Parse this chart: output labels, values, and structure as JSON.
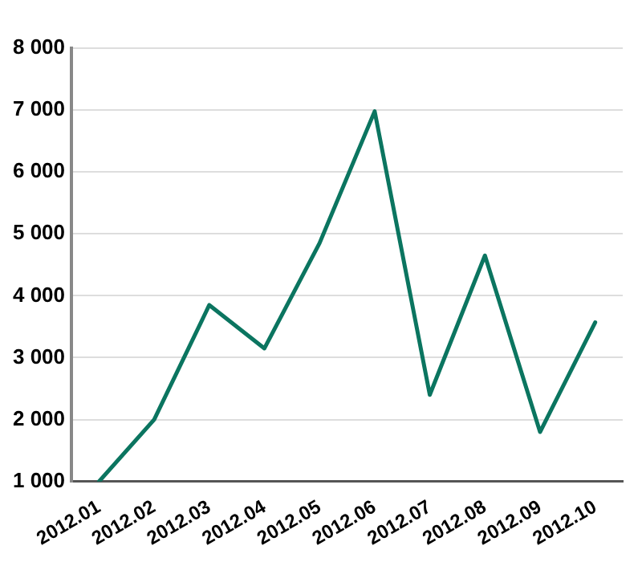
{
  "chart_data": {
    "type": "line",
    "categories": [
      "2012.01",
      "2012.02",
      "2012.03",
      "2012.04",
      "2012.05",
      "2012.06",
      "2012.07",
      "2012.08",
      "2012.09",
      "2012.10"
    ],
    "series": [
      {
        "color": "#0b7560",
        "values": [
          1000,
          2000,
          3850,
          3150,
          4850,
          6980,
          2400,
          4650,
          1800,
          3570
        ]
      }
    ],
    "ylim": [
      1000,
      8000
    ],
    "yticks": [
      {
        "value": 1000,
        "label": "1 000"
      },
      {
        "value": 2000,
        "label": "2 000"
      },
      {
        "value": 3000,
        "label": "3 000"
      },
      {
        "value": 4000,
        "label": "4 000"
      },
      {
        "value": 5000,
        "label": "5 000"
      },
      {
        "value": 6000,
        "label": "6 000"
      },
      {
        "value": 7000,
        "label": "7 000"
      },
      {
        "value": 8000,
        "label": "8 000"
      }
    ],
    "grid": "y",
    "legend": false,
    "marker": "none",
    "line_style": "solid"
  }
}
